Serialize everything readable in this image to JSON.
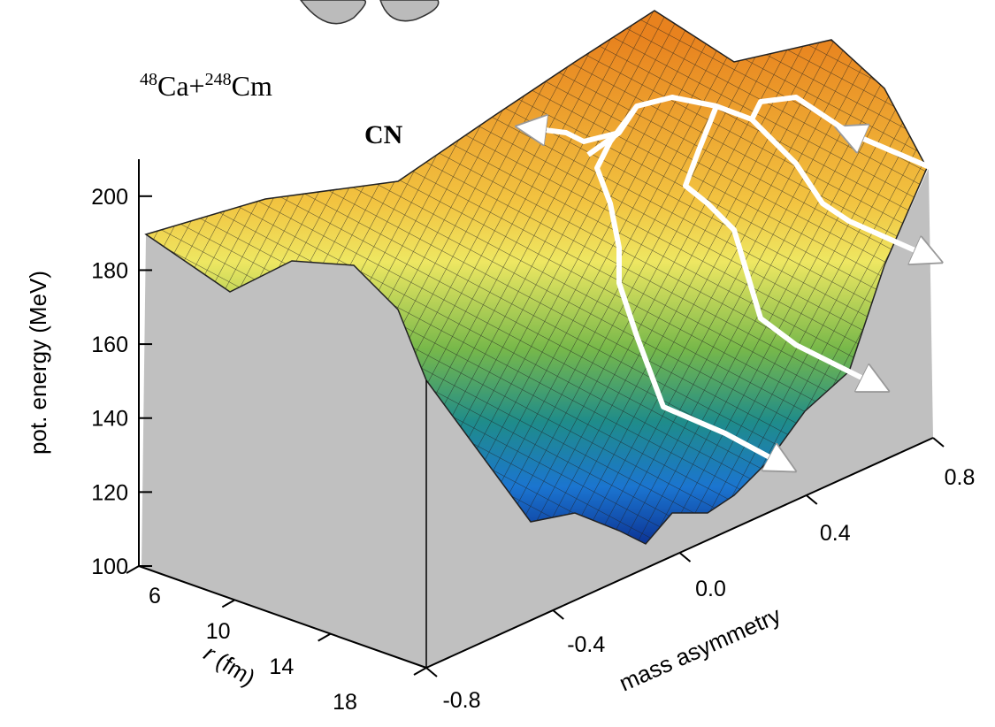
{
  "chart_data": {
    "type": "surface3d",
    "title": {
      "projectile_mass": "48",
      "projectile": "Ca+",
      "target_mass": "248",
      "target": "Cm"
    },
    "annotation": "CN",
    "zlabel": "pot. energy (MeV)",
    "zlim": [
      100,
      210
    ],
    "zticks": [
      100,
      120,
      140,
      160,
      180,
      200
    ],
    "rlabel": {
      "symbol": "r",
      "unit": " (fm)"
    },
    "rlim": [
      6,
      18
    ],
    "rticks": [
      6,
      10,
      14,
      18
    ],
    "xlabel": "mass asymmetry",
    "xlim": [
      -0.8,
      0.8
    ],
    "xticks": [
      -0.8,
      -0.4,
      {
        "value": 0,
        "label": "0.0"
      },
      0.4,
      0.8
    ]
  }
}
